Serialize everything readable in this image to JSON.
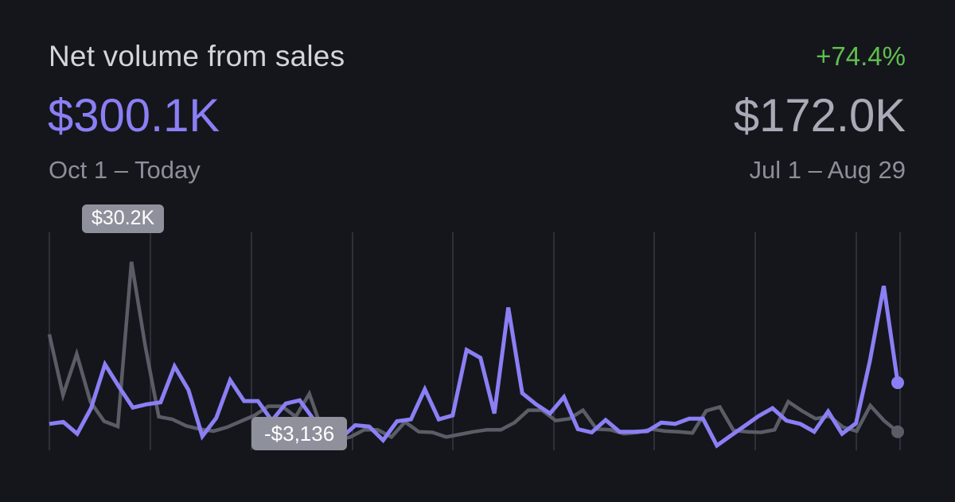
{
  "header": {
    "title": "Net volume from sales",
    "change": "+74.4%",
    "current_value": "$300.1K",
    "current_range": "Oct 1 – Today",
    "previous_value": "$172.0K",
    "previous_range": "Jul 1 – Aug 29"
  },
  "tooltips": {
    "max": "$30.2K",
    "min": "-$3,136"
  },
  "colors": {
    "background": "#15161c",
    "current_series": "#8b7ff5",
    "previous_series": "#5b5d66",
    "positive_change": "#5fbf4f",
    "gridline": "#2e3038"
  },
  "chart_data": {
    "type": "line",
    "grid": "vertical",
    "ylim": [
      -3136,
      30200
    ],
    "annotations": [
      "$30.2K",
      "-$3,136"
    ],
    "series": [
      {
        "values": [
          900,
          1200,
          -600,
          3300,
          10000,
          6600,
          3400,
          3900,
          4200,
          9700,
          6100,
          -1000,
          1800,
          7600,
          4400,
          4400,
          1400,
          4000,
          4500,
          1600,
          -800,
          -1200,
          700,
          500,
          -1600,
          1300,
          1600,
          6200,
          1600,
          2200,
          12200,
          11000,
          2500,
          18700,
          5600,
          3900,
          2500,
          5000,
          100,
          -400,
          1500,
          -300,
          -300,
          -200,
          1100,
          900,
          1700,
          1700,
          -2400,
          -900,
          600,
          2100,
          3300,
          1400,
          900,
          -300,
          2800,
          -600,
          1000,
          10500,
          22000,
          7200
        ]
      },
      {
        "values": [
          14600,
          5300,
          11600,
          4300,
          1300,
          500,
          25700,
          12900,
          2000,
          1600,
          600,
          100,
          -200,
          400,
          1300,
          2200,
          3600,
          3600,
          2000,
          5500,
          -400,
          -1600,
          -1100,
          0,
          0,
          -1100,
          1200,
          -300,
          -400,
          -1100,
          -700,
          -300,
          0,
          0,
          1100,
          3000,
          3000,
          1400,
          1700,
          3000,
          100,
          0,
          -600,
          -400,
          100,
          -200,
          -300,
          -500,
          2900,
          3500,
          -100,
          -300,
          -400,
          0,
          4300,
          2900,
          1700,
          2100,
          400,
          -200,
          3700,
          1400,
          -300
        ]
      }
    ]
  }
}
